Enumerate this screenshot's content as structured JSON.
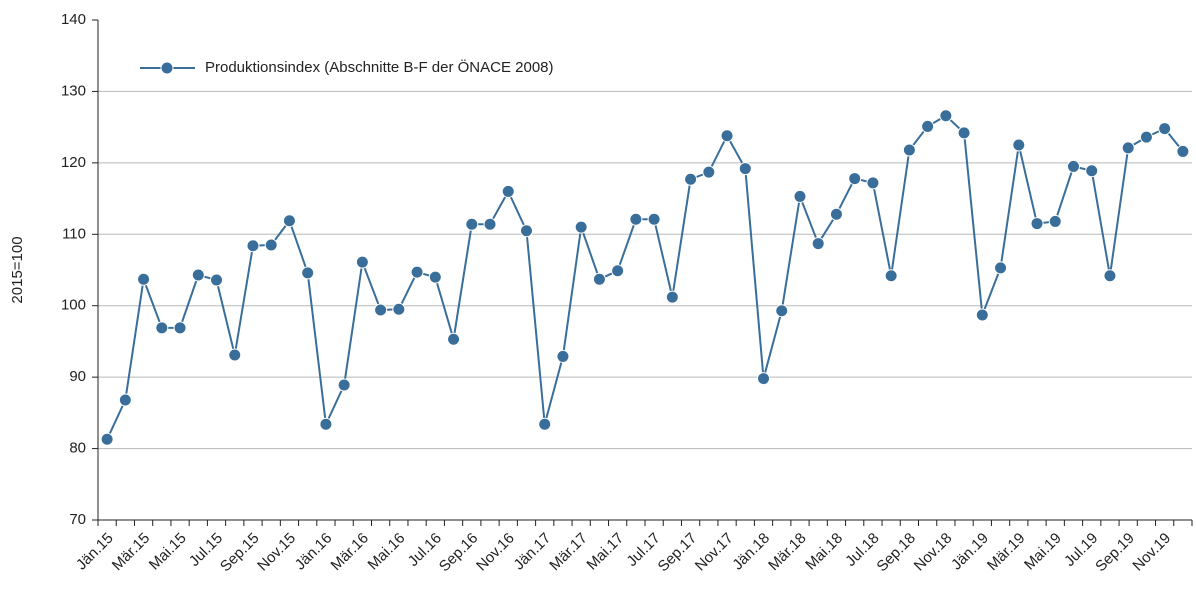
{
  "chart_data": {
    "type": "line",
    "y_label": "2015=100",
    "categories": [
      "Jän.15",
      null,
      "Mär.15",
      null,
      "Mai.15",
      null,
      "Jul.15",
      null,
      "Sep.15",
      null,
      "Nov.15",
      null,
      "Jän.16",
      null,
      "Mär.16",
      null,
      "Mai.16",
      null,
      "Jul.16",
      null,
      "Sep.16",
      null,
      "Nov.16",
      null,
      "Jän.17",
      null,
      "Mär.17",
      null,
      "Mai.17",
      null,
      "Jul.17",
      null,
      "Sep.17",
      null,
      "Nov.17",
      null,
      "Jän.18",
      null,
      "Mär.18",
      null,
      "Mai.18",
      null,
      "Jul.18",
      null,
      "Sep.18",
      null,
      "Nov.18",
      null,
      "Jän.19",
      null,
      "Mär.19",
      null,
      "Mai.19",
      null,
      "Jul.19",
      null,
      "Sep.19",
      null,
      "Nov.19",
      null
    ],
    "series": [
      {
        "name": "Produktionsindex (Abschnitte B-F der ÖNACE 2008)",
        "color": "#3a6e9a",
        "values": [
          81.3,
          86.8,
          103.7,
          96.9,
          96.9,
          104.3,
          103.6,
          93.1,
          108.4,
          108.5,
          111.9,
          104.6,
          83.4,
          88.9,
          106.1,
          99.4,
          99.5,
          104.7,
          104.0,
          95.3,
          111.4,
          111.4,
          116.0,
          110.5,
          83.4,
          92.9,
          111.0,
          103.7,
          104.9,
          112.1,
          112.1,
          101.2,
          117.7,
          118.7,
          123.8,
          119.2,
          89.8,
          99.3,
          115.3,
          108.7,
          112.8,
          117.8,
          117.2,
          104.2,
          121.8,
          125.1,
          126.6,
          124.2,
          98.7,
          105.3,
          122.5,
          111.5,
          111.8,
          119.5,
          118.9,
          104.2,
          122.1,
          123.6,
          124.8,
          121.6
        ]
      }
    ],
    "ylim": [
      70,
      140
    ],
    "yticks": [
      70,
      80,
      90,
      100,
      110,
      120,
      130,
      140
    ],
    "grid": true,
    "legend": "upper left"
  }
}
